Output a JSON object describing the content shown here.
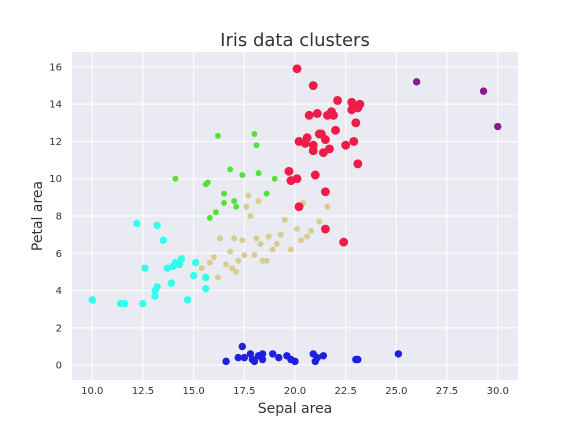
{
  "chart_data": {
    "type": "scatter",
    "title": "Iris data clusters",
    "xlabel": "Sepal area",
    "ylabel": "Petal area",
    "xlim": [
      9.0,
      31.0
    ],
    "ylim": [
      -0.8,
      16.8
    ],
    "xticks": [
      10.0,
      12.5,
      15.0,
      17.5,
      20.0,
      22.5,
      25.0,
      27.5,
      30.0
    ],
    "xtick_labels": [
      "10.0",
      "12.5",
      "15.0",
      "17.5",
      "20.0",
      "22.5",
      "25.0",
      "27.5",
      "30.0"
    ],
    "yticks": [
      0,
      2,
      4,
      6,
      8,
      10,
      12,
      14,
      16
    ],
    "ytick_labels": [
      "0",
      "2",
      "4",
      "6",
      "8",
      "10",
      "12",
      "14",
      "16"
    ],
    "grid": true,
    "background": "#eaeaf2",
    "series": [
      {
        "color": "#1f1fe0",
        "marker_size": 5,
        "points": [
          [
            16.6,
            0.2
          ],
          [
            17.2,
            0.4
          ],
          [
            17.4,
            1.0
          ],
          [
            17.5,
            0.4
          ],
          [
            17.8,
            0.6
          ],
          [
            17.9,
            0.3
          ],
          [
            18.0,
            0.2
          ],
          [
            18.2,
            0.5
          ],
          [
            18.4,
            0.6
          ],
          [
            18.4,
            0.3
          ],
          [
            18.9,
            0.6
          ],
          [
            19.2,
            0.4
          ],
          [
            19.6,
            0.5
          ],
          [
            19.8,
            0.3
          ],
          [
            20.0,
            0.2
          ],
          [
            20.9,
            0.6
          ],
          [
            21.0,
            0.2
          ],
          [
            21.1,
            0.4
          ],
          [
            21.4,
            0.5
          ],
          [
            23.0,
            0.3
          ],
          [
            23.1,
            0.3
          ],
          [
            25.1,
            0.6
          ]
        ]
      },
      {
        "color": "#33ffee",
        "marker_size": 5,
        "points": [
          [
            10.0,
            3.5
          ],
          [
            11.4,
            3.3
          ],
          [
            11.6,
            3.3
          ],
          [
            12.2,
            7.6
          ],
          [
            12.5,
            3.3
          ],
          [
            12.6,
            5.2
          ],
          [
            13.1,
            3.7
          ],
          [
            13.1,
            4.0
          ],
          [
            13.2,
            4.2
          ],
          [
            13.2,
            7.5
          ],
          [
            13.5,
            6.7
          ],
          [
            13.7,
            5.2
          ],
          [
            13.9,
            4.4
          ],
          [
            14.0,
            5.3
          ],
          [
            14.1,
            5.5
          ],
          [
            14.3,
            5.4
          ],
          [
            14.4,
            5.7
          ],
          [
            14.7,
            3.5
          ],
          [
            15.0,
            4.8
          ],
          [
            15.1,
            5.5
          ],
          [
            15.6,
            4.1
          ],
          [
            15.6,
            4.7
          ]
        ]
      },
      {
        "color": "#55e038",
        "marker_size": 4,
        "points": [
          [
            14.1,
            10.0
          ],
          [
            15.6,
            9.7
          ],
          [
            15.7,
            9.8
          ],
          [
            15.8,
            7.9
          ],
          [
            16.1,
            8.2
          ],
          [
            16.2,
            12.3
          ],
          [
            16.5,
            9.2
          ],
          [
            16.8,
            10.5
          ],
          [
            17.0,
            8.8
          ],
          [
            17.4,
            10.2
          ],
          [
            18.0,
            12.4
          ],
          [
            18.1,
            11.8
          ],
          [
            18.2,
            10.3
          ],
          [
            18.6,
            9.2
          ],
          [
            19.0,
            10.0
          ],
          [
            16.5,
            8.7
          ],
          [
            17.1,
            8.5
          ]
        ]
      },
      {
        "color": "#d8cc8e",
        "marker_size": 4,
        "points": [
          [
            15.4,
            5.2
          ],
          [
            15.8,
            5.5
          ],
          [
            16.0,
            5.8
          ],
          [
            16.2,
            4.7
          ],
          [
            16.3,
            6.8
          ],
          [
            16.6,
            5.4
          ],
          [
            16.8,
            6.1
          ],
          [
            16.9,
            5.2
          ],
          [
            17.0,
            6.8
          ],
          [
            17.1,
            5.0
          ],
          [
            17.2,
            5.6
          ],
          [
            17.4,
            6.7
          ],
          [
            17.5,
            5.9
          ],
          [
            17.6,
            8.5
          ],
          [
            17.7,
            9.1
          ],
          [
            17.8,
            8.0
          ],
          [
            18.0,
            5.9
          ],
          [
            18.1,
            6.8
          ],
          [
            18.2,
            8.8
          ],
          [
            18.3,
            6.5
          ],
          [
            18.4,
            5.6
          ],
          [
            18.6,
            5.6
          ],
          [
            18.7,
            6.9
          ],
          [
            18.9,
            6.2
          ],
          [
            19.1,
            6.5
          ],
          [
            19.3,
            7.0
          ],
          [
            19.5,
            7.8
          ],
          [
            19.8,
            6.2
          ],
          [
            20.1,
            7.3
          ],
          [
            20.3,
            6.7
          ],
          [
            20.6,
            6.9
          ],
          [
            20.8,
            7.2
          ],
          [
            21.2,
            7.7
          ],
          [
            21.6,
            8.5
          ],
          [
            20.4,
            8.7
          ]
        ]
      },
      {
        "color": "#ee1c47",
        "marker_size": 6,
        "points": [
          [
            19.7,
            10.4
          ],
          [
            19.8,
            9.9
          ],
          [
            20.1,
            10.0
          ],
          [
            20.2,
            12.0
          ],
          [
            20.2,
            8.5
          ],
          [
            20.1,
            15.9
          ],
          [
            20.5,
            11.9
          ],
          [
            20.6,
            12.2
          ],
          [
            20.7,
            13.4
          ],
          [
            20.9,
            11.5
          ],
          [
            20.9,
            11.8
          ],
          [
            20.9,
            15.0
          ],
          [
            21.0,
            10.2
          ],
          [
            21.1,
            13.5
          ],
          [
            21.2,
            12.4
          ],
          [
            21.3,
            12.4
          ],
          [
            21.4,
            11.4
          ],
          [
            21.5,
            12.1
          ],
          [
            21.7,
            11.6
          ],
          [
            21.9,
            13.4
          ],
          [
            22.0,
            12.6
          ],
          [
            22.1,
            14.2
          ],
          [
            22.5,
            11.8
          ],
          [
            22.8,
            14.1
          ],
          [
            22.9,
            12.0
          ],
          [
            23.0,
            13.0
          ],
          [
            23.1,
            13.8
          ],
          [
            23.2,
            14.0
          ],
          [
            21.6,
            13.4
          ],
          [
            21.8,
            13.6
          ],
          [
            21.5,
            9.3
          ],
          [
            21.5,
            7.3
          ],
          [
            22.4,
            6.6
          ],
          [
            23.1,
            10.8
          ],
          [
            22.8,
            13.7
          ]
        ]
      },
      {
        "color": "#8b1a8b",
        "marker_size": 5,
        "points": [
          [
            26.0,
            15.2
          ],
          [
            29.3,
            14.7
          ],
          [
            30.0,
            12.8
          ]
        ]
      }
    ]
  }
}
